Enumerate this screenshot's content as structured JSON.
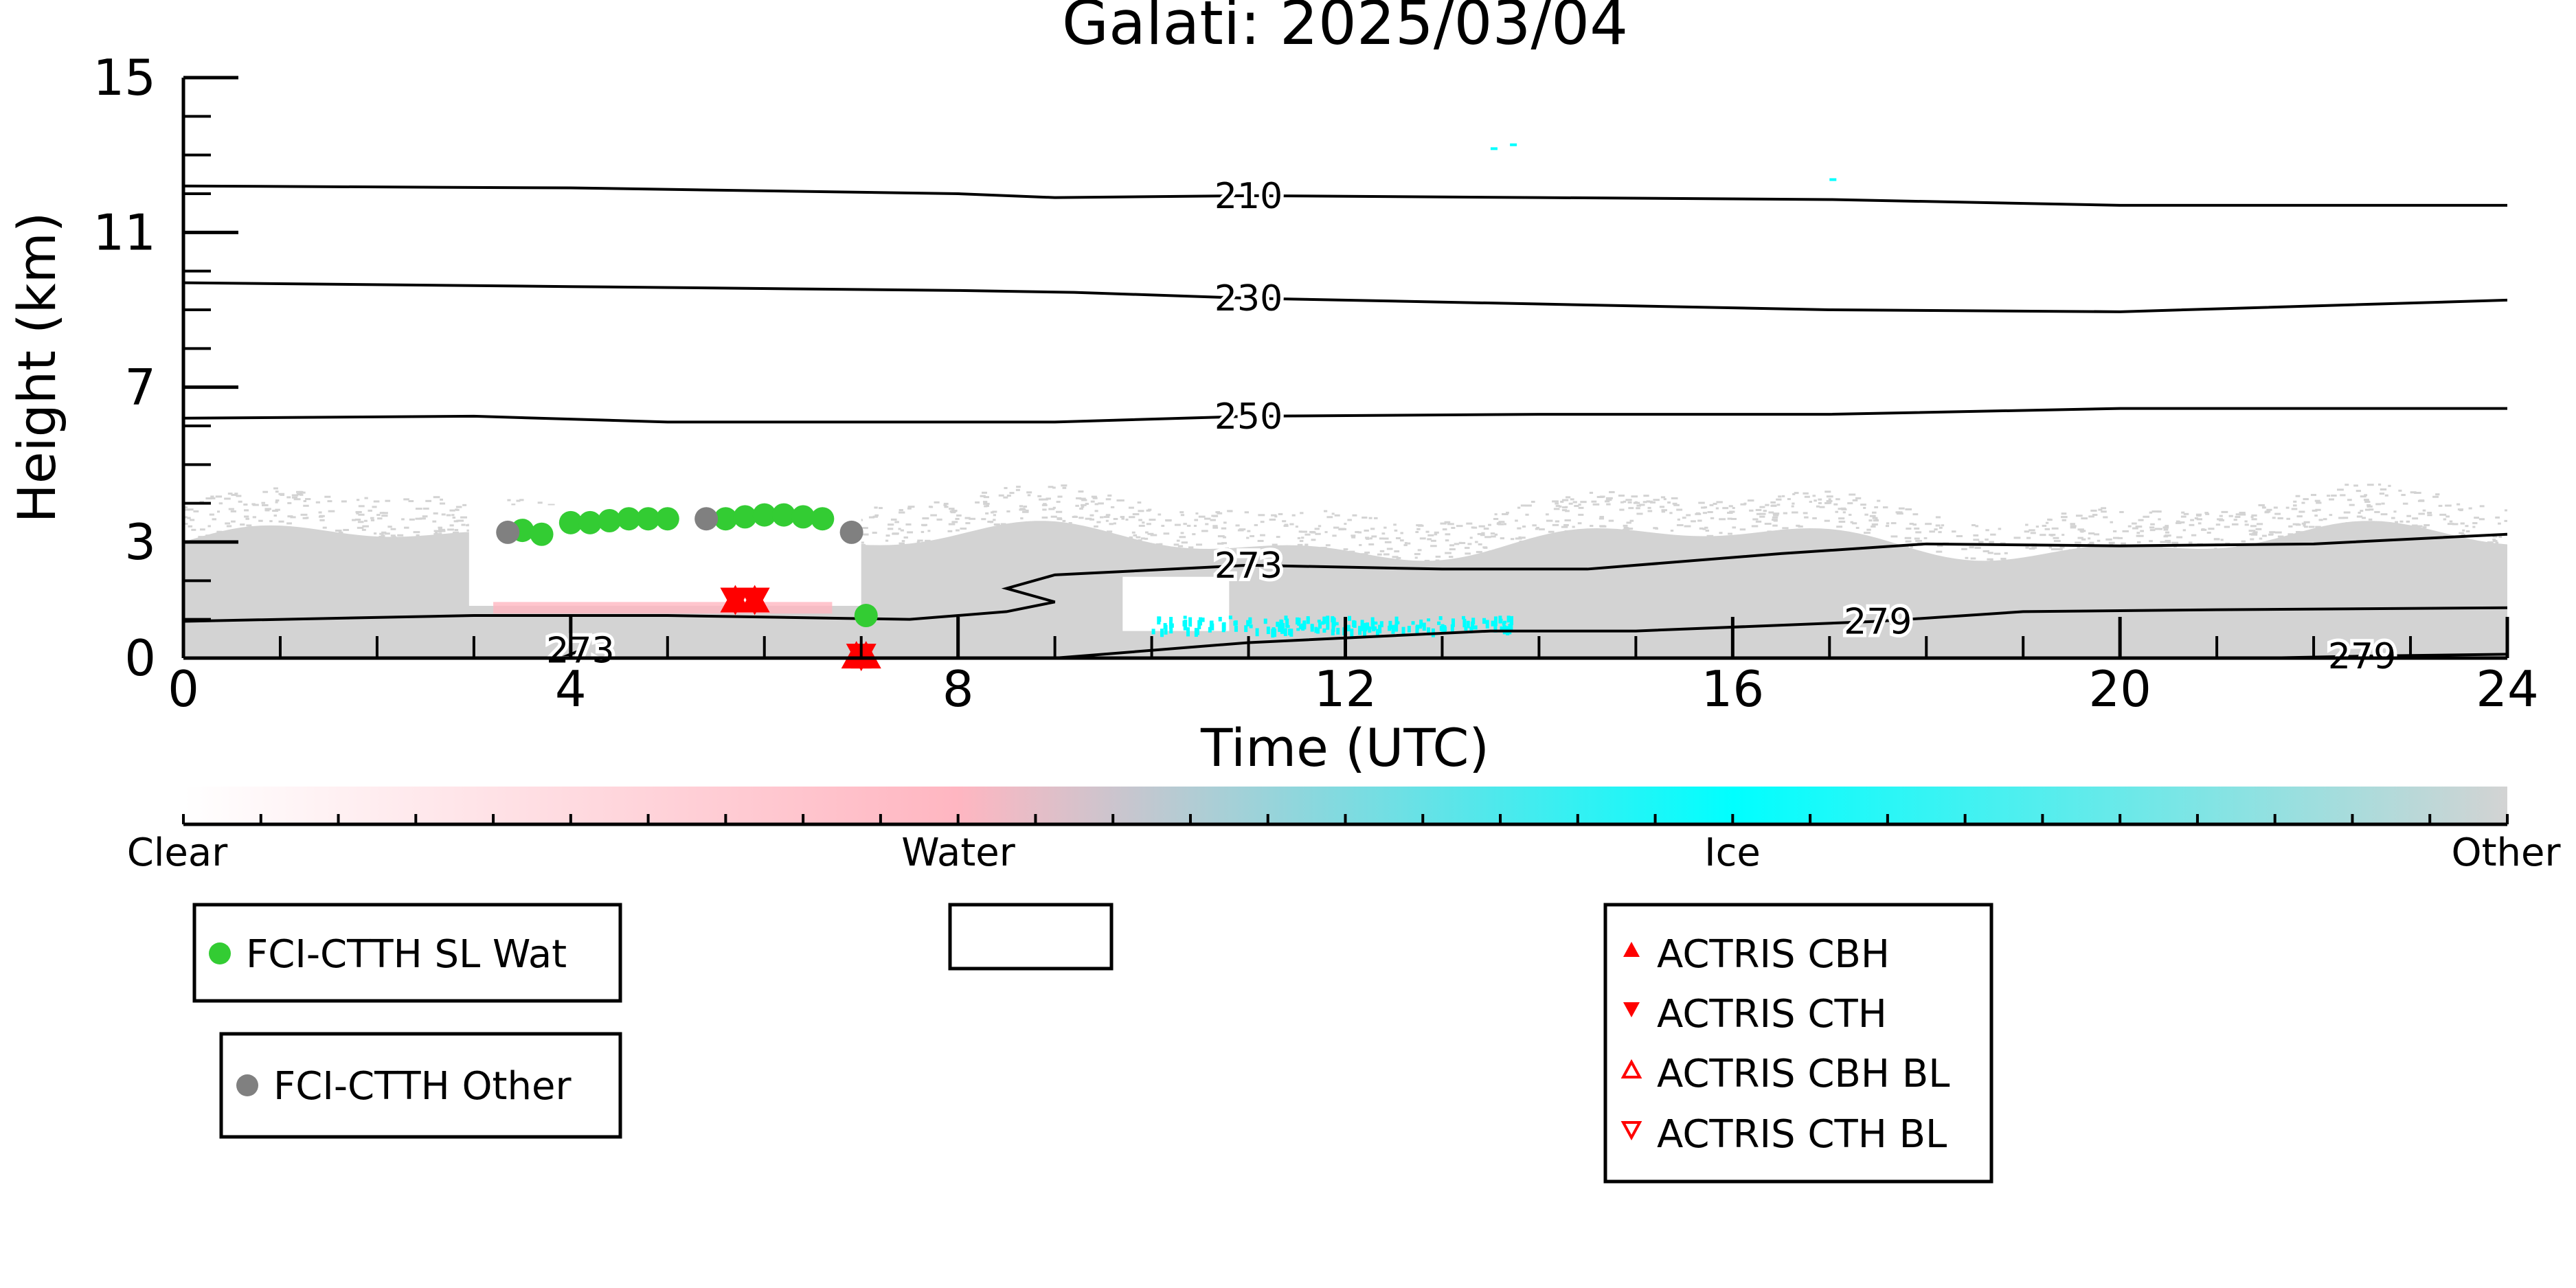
{
  "chart_data": {
    "type": "scatter",
    "title": "Galati: 2025/03/04",
    "xlabel": "Time (UTC)",
    "ylabel": "Height (km)",
    "xlim": [
      0,
      24
    ],
    "ylim": [
      0,
      15
    ],
    "xticks": [
      0,
      4,
      8,
      12,
      16,
      20,
      24
    ],
    "yticks": [
      0,
      3,
      7,
      11,
      15
    ],
    "colors": {
      "clear": "#ffffff",
      "water": "#ffb6c1",
      "ice": "#00ffff",
      "other": "#d3d3d3",
      "sl_wat": "#33cc33",
      "other_ctth": "#808080",
      "actris": "#ff0000"
    },
    "colorbar": {
      "labels": [
        "Clear",
        "Water",
        "Ice",
        "Other"
      ]
    },
    "isotherms": [
      {
        "label": "210",
        "points": [
          [
            0,
            12.2
          ],
          [
            4,
            12.15
          ],
          [
            8,
            12.0
          ],
          [
            9,
            11.9
          ],
          [
            11,
            11.95
          ],
          [
            14,
            11.9
          ],
          [
            17,
            11.85
          ],
          [
            20,
            11.7
          ],
          [
            24,
            11.7
          ]
        ]
      },
      {
        "label": "230",
        "points": [
          [
            0,
            9.7
          ],
          [
            4,
            9.6
          ],
          [
            8,
            9.5
          ],
          [
            9.2,
            9.45
          ],
          [
            11,
            9.3
          ],
          [
            14,
            9.15
          ],
          [
            17,
            9.0
          ],
          [
            20,
            8.95
          ],
          [
            24,
            9.25
          ]
        ]
      },
      {
        "label": "250",
        "points": [
          [
            0,
            6.2
          ],
          [
            3,
            6.25
          ],
          [
            5,
            6.1
          ],
          [
            8,
            6.1
          ],
          [
            9,
            6.1
          ],
          [
            11,
            6.25
          ],
          [
            14,
            6.3
          ],
          [
            17,
            6.3
          ],
          [
            20,
            6.45
          ],
          [
            24,
            6.45
          ]
        ]
      },
      {
        "label": "273",
        "points": [
          [
            0,
            0.95
          ],
          [
            3,
            1.1
          ],
          [
            5,
            1.1
          ],
          [
            7.5,
            1.0
          ],
          [
            8.5,
            1.2
          ],
          [
            9.0,
            1.45
          ],
          [
            8.5,
            1.8
          ],
          [
            9,
            2.15
          ],
          [
            11,
            2.4
          ],
          [
            13,
            2.3
          ],
          [
            14.5,
            2.3
          ],
          [
            16.5,
            2.7
          ],
          [
            18,
            2.95
          ],
          [
            20,
            2.9
          ],
          [
            22,
            2.95
          ],
          [
            24,
            3.2
          ]
        ]
      },
      {
        "label": "279",
        "points": [
          [
            9.0,
            0.0
          ],
          [
            11,
            0.4
          ],
          [
            13.5,
            0.7
          ],
          [
            15,
            0.7
          ],
          [
            17.5,
            0.95
          ],
          [
            19,
            1.2
          ],
          [
            21,
            1.25
          ],
          [
            24,
            1.3
          ]
        ]
      },
      {
        "label": "279",
        "points": [
          [
            21.5,
            0.0
          ],
          [
            22.5,
            0.05
          ],
          [
            24,
            0.1
          ]
        ]
      },
      {
        "label": "273",
        "points": [
          [
            3.9,
            0.0
          ],
          [
            4.1,
            0.2
          ]
        ]
      }
    ],
    "series": [
      {
        "name": "FCI-CTTH SL Wat",
        "marker": "circle",
        "points": [
          [
            3.5,
            3.3
          ],
          [
            3.7,
            3.2
          ],
          [
            4.0,
            3.5
          ],
          [
            4.2,
            3.5
          ],
          [
            4.4,
            3.55
          ],
          [
            4.6,
            3.6
          ],
          [
            4.8,
            3.6
          ],
          [
            5.0,
            3.6
          ],
          [
            5.6,
            3.6
          ],
          [
            5.8,
            3.65
          ],
          [
            6.0,
            3.7
          ],
          [
            6.2,
            3.7
          ],
          [
            6.4,
            3.65
          ],
          [
            6.6,
            3.6
          ],
          [
            7.05,
            1.1
          ]
        ]
      },
      {
        "name": "FCI-CTTH Other",
        "marker": "circle",
        "points": [
          [
            3.35,
            3.25
          ],
          [
            5.4,
            3.6
          ],
          [
            6.9,
            3.25
          ]
        ]
      },
      {
        "name": "ACTRIS CBH",
        "marker": "triangle-up",
        "points": [
          [
            5.7,
            1.5
          ],
          [
            5.9,
            1.5
          ],
          [
            6.95,
            0.05
          ],
          [
            7.05,
            0.05
          ]
        ]
      },
      {
        "name": "ACTRIS CTH",
        "marker": "triangle-down",
        "points": [
          [
            5.7,
            1.5
          ],
          [
            5.9,
            1.5
          ],
          [
            7.0,
            0.05
          ]
        ]
      },
      {
        "name": "ACTRIS CBH BL",
        "marker": "triangle-up-open",
        "points": []
      },
      {
        "name": "ACTRIS CTH BL",
        "marker": "triangle-down-open",
        "points": []
      }
    ]
  }
}
